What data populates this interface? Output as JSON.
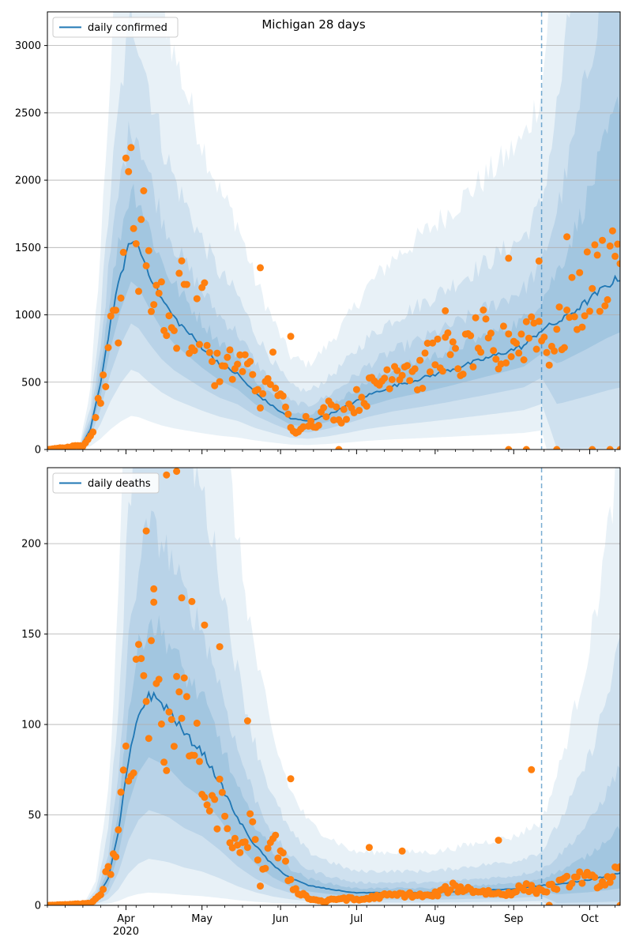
{
  "figure_title": "Michigan 28 days",
  "vline_date": "2020-09-12",
  "colors": {
    "band": "#1f77b4",
    "median": "#1f77b4",
    "observed": "#ff7f0e",
    "grid": "#b0b0b0",
    "vline": "#1f77b4"
  },
  "xaxis": {
    "start": "2020-03-01",
    "end": "2020-10-13",
    "tick_labels": [
      "Apr",
      "May",
      "Jun",
      "Jul",
      "Aug",
      "Sep",
      "Oct"
    ],
    "tick_dates": [
      "2020-04-01",
      "2020-05-01",
      "2020-06-01",
      "2020-07-01",
      "2020-08-01",
      "2020-09-01",
      "2020-10-01"
    ],
    "year_label": "2020"
  },
  "chart_data": [
    {
      "type": "line",
      "legend": "daily confirmed",
      "legend_position": "top-left",
      "grid": "y",
      "ylim": [
        0,
        3250
      ],
      "yticks": [
        "0",
        "500",
        "1000",
        "1500",
        "2000",
        "2500",
        "3000"
      ],
      "median_keypoints": [
        [
          "2020-03-01",
          0
        ],
        [
          "2020-03-10",
          2
        ],
        [
          "2020-03-14",
          20
        ],
        [
          "2020-03-18",
          150
        ],
        [
          "2020-03-22",
          500
        ],
        [
          "2020-03-26",
          950
        ],
        [
          "2020-03-30",
          1300
        ],
        [
          "2020-04-03",
          1560
        ],
        [
          "2020-04-06",
          1500
        ],
        [
          "2020-04-10",
          1320
        ],
        [
          "2020-04-15",
          1120
        ],
        [
          "2020-04-20",
          980
        ],
        [
          "2020-04-25",
          880
        ],
        [
          "2020-05-01",
          760
        ],
        [
          "2020-05-08",
          640
        ],
        [
          "2020-05-15",
          560
        ],
        [
          "2020-05-22",
          420
        ],
        [
          "2020-05-29",
          320
        ],
        [
          "2020-06-05",
          230
        ],
        [
          "2020-06-12",
          210
        ],
        [
          "2020-06-20",
          260
        ],
        [
          "2020-06-28",
          330
        ],
        [
          "2020-07-05",
          400
        ],
        [
          "2020-07-15",
          470
        ],
        [
          "2020-07-25",
          520
        ],
        [
          "2020-08-05",
          580
        ],
        [
          "2020-08-15",
          640
        ],
        [
          "2020-08-25",
          700
        ],
        [
          "2020-09-05",
          770
        ],
        [
          "2020-09-12",
          890
        ],
        [
          "2020-09-20",
          960
        ],
        [
          "2020-09-30",
          1100
        ],
        [
          "2020-10-08",
          1220
        ],
        [
          "2020-10-13",
          1280
        ]
      ],
      "band_ratios": {
        "inner": [
          0.8,
          1.25
        ],
        "mid": [
          0.6,
          1.55
        ],
        "wide": [
          0.38,
          2.05
        ],
        "outer": [
          0.16,
          3.0
        ]
      },
      "observed_keypoints": [
        [
          "2020-03-01",
          0
        ],
        [
          "2020-03-15",
          30
        ],
        [
          "2020-03-19",
          160
        ],
        [
          "2020-03-23",
          510
        ],
        [
          "2020-03-26",
          820
        ],
        [
          "2020-03-29",
          1050
        ],
        [
          "2020-04-01",
          1770
        ],
        [
          "2020-04-03",
          1990
        ],
        [
          "2020-04-06",
          1520
        ],
        [
          "2020-04-08",
          1830
        ],
        [
          "2020-04-10",
          1220
        ],
        [
          "2020-04-13",
          1220
        ],
        [
          "2020-04-16",
          1100
        ],
        [
          "2020-04-20",
          820
        ],
        [
          "2020-04-24",
          1350
        ],
        [
          "2020-04-27",
          750
        ],
        [
          "2020-05-01",
          1130
        ],
        [
          "2020-05-05",
          620
        ],
        [
          "2020-05-09",
          560
        ],
        [
          "2020-05-13",
          620
        ],
        [
          "2020-05-17",
          640
        ],
        [
          "2020-05-21",
          560
        ],
        [
          "2020-05-25",
          350
        ],
        [
          "2020-05-29",
          620
        ],
        [
          "2020-06-02",
          330
        ],
        [
          "2020-06-06",
          120
        ],
        [
          "2020-06-10",
          220
        ],
        [
          "2020-06-14",
          200
        ],
        [
          "2020-06-20",
          300
        ],
        [
          "2020-06-25",
          260
        ],
        [
          "2020-06-30",
          350
        ],
        [
          "2020-07-05",
          420
        ],
        [
          "2020-07-10",
          500
        ],
        [
          "2020-07-15",
          620
        ],
        [
          "2020-07-20",
          650
        ],
        [
          "2020-07-25",
          540
        ],
        [
          "2020-07-30",
          660
        ],
        [
          "2020-08-04",
          760
        ],
        [
          "2020-08-10",
          620
        ],
        [
          "2020-08-15",
          760
        ],
        [
          "2020-08-20",
          830
        ],
        [
          "2020-08-25",
          610
        ],
        [
          "2020-08-30",
          840
        ],
        [
          "2020-09-04",
          790
        ],
        [
          "2020-09-09",
          980
        ],
        [
          "2020-09-14",
          760
        ],
        [
          "2020-09-20",
          880
        ],
        [
          "2020-09-26",
          1100
        ],
        [
          "2020-10-02",
          1250
        ],
        [
          "2020-10-08",
          1380
        ],
        [
          "2020-10-13",
          1630
        ]
      ],
      "observed_highlights": [
        [
          "2020-06-24",
          0
        ],
        [
          "2020-08-30",
          0
        ],
        [
          "2020-09-06",
          0
        ],
        [
          "2020-09-18",
          0
        ],
        [
          "2020-10-02",
          0
        ],
        [
          "2020-10-09",
          0
        ],
        [
          "2020-10-13",
          0
        ],
        [
          "2020-05-24",
          1350
        ],
        [
          "2020-06-05",
          840
        ],
        [
          "2020-09-11",
          1400
        ],
        [
          "2020-09-22",
          1580
        ],
        [
          "2020-08-30",
          1420
        ],
        [
          "2020-08-05",
          1030
        ]
      ]
    },
    {
      "type": "line",
      "legend": "daily deaths",
      "legend_position": "top-left",
      "grid": "y",
      "ylim": [
        0,
        242
      ],
      "yticks": [
        "0",
        "50",
        "100",
        "150",
        "200"
      ],
      "median_keypoints": [
        [
          "2020-03-01",
          0
        ],
        [
          "2020-03-15",
          0
        ],
        [
          "2020-03-20",
          3
        ],
        [
          "2020-03-25",
          15
        ],
        [
          "2020-03-29",
          40
        ],
        [
          "2020-04-02",
          80
        ],
        [
          "2020-04-06",
          105
        ],
        [
          "2020-04-10",
          117
        ],
        [
          "2020-04-14",
          113
        ],
        [
          "2020-04-18",
          108
        ],
        [
          "2020-04-24",
          95
        ],
        [
          "2020-05-01",
          85
        ],
        [
          "2020-05-08",
          68
        ],
        [
          "2020-05-15",
          48
        ],
        [
          "2020-05-22",
          33
        ],
        [
          "2020-05-29",
          22
        ],
        [
          "2020-06-05",
          15
        ],
        [
          "2020-06-12",
          11
        ],
        [
          "2020-06-20",
          9
        ],
        [
          "2020-06-30",
          7
        ],
        [
          "2020-07-15",
          7
        ],
        [
          "2020-08-01",
          7
        ],
        [
          "2020-08-15",
          8
        ],
        [
          "2020-09-01",
          9
        ],
        [
          "2020-09-12",
          11
        ],
        [
          "2020-09-20",
          12
        ],
        [
          "2020-10-01",
          14
        ],
        [
          "2020-10-13",
          18
        ]
      ],
      "band_ratios": {
        "inner": [
          0.7,
          1.35
        ],
        "mid": [
          0.45,
          1.8
        ],
        "wide": [
          0.22,
          2.7
        ],
        "outer": [
          0.06,
          4.2
        ]
      },
      "observed_keypoints": [
        [
          "2020-03-01",
          0
        ],
        [
          "2020-03-18",
          1
        ],
        [
          "2020-03-22",
          6
        ],
        [
          "2020-03-25",
          20
        ],
        [
          "2020-03-28",
          27
        ],
        [
          "2020-03-31",
          80
        ],
        [
          "2020-04-03",
          66
        ],
        [
          "2020-04-05",
          118
        ],
        [
          "2020-04-07",
          127
        ],
        [
          "2020-04-10",
          105
        ],
        [
          "2020-04-13",
          157
        ],
        [
          "2020-04-16",
          85
        ],
        [
          "2020-04-19",
          109
        ],
        [
          "2020-04-22",
          110
        ],
        [
          "2020-04-26",
          93
        ],
        [
          "2020-04-30",
          78
        ],
        [
          "2020-05-04",
          46
        ],
        [
          "2020-05-08",
          58
        ],
        [
          "2020-05-12",
          41
        ],
        [
          "2020-05-16",
          24
        ],
        [
          "2020-05-20",
          46
        ],
        [
          "2020-05-24",
          13
        ],
        [
          "2020-05-28",
          38
        ],
        [
          "2020-06-01",
          27
        ],
        [
          "2020-06-06",
          10
        ],
        [
          "2020-06-12",
          4
        ],
        [
          "2020-06-18",
          2
        ],
        [
          "2020-06-25",
          4
        ],
        [
          "2020-07-02",
          3
        ],
        [
          "2020-07-10",
          5
        ],
        [
          "2020-07-20",
          6
        ],
        [
          "2020-07-30",
          5
        ],
        [
          "2020-08-08",
          10
        ],
        [
          "2020-08-18",
          8
        ],
        [
          "2020-08-28",
          6
        ],
        [
          "2020-09-05",
          10
        ],
        [
          "2020-09-12",
          8
        ],
        [
          "2020-09-20",
          12
        ],
        [
          "2020-09-28",
          16
        ],
        [
          "2020-10-05",
          12
        ],
        [
          "2020-10-13",
          19
        ]
      ],
      "observed_highlights": [
        [
          "2020-04-17",
          238
        ],
        [
          "2020-04-21",
          240
        ],
        [
          "2020-04-09",
          207
        ],
        [
          "2020-04-12",
          175
        ],
        [
          "2020-04-23",
          170
        ],
        [
          "2020-04-27",
          168
        ],
        [
          "2020-05-02",
          155
        ],
        [
          "2020-05-08",
          143
        ],
        [
          "2020-05-19",
          102
        ],
        [
          "2020-06-05",
          70
        ],
        [
          "2020-09-08",
          75
        ],
        [
          "2020-08-26",
          36
        ],
        [
          "2020-07-06",
          32
        ],
        [
          "2020-07-19",
          30
        ],
        [
          "2020-10-13",
          0
        ],
        [
          "2020-09-15",
          0
        ]
      ]
    }
  ]
}
